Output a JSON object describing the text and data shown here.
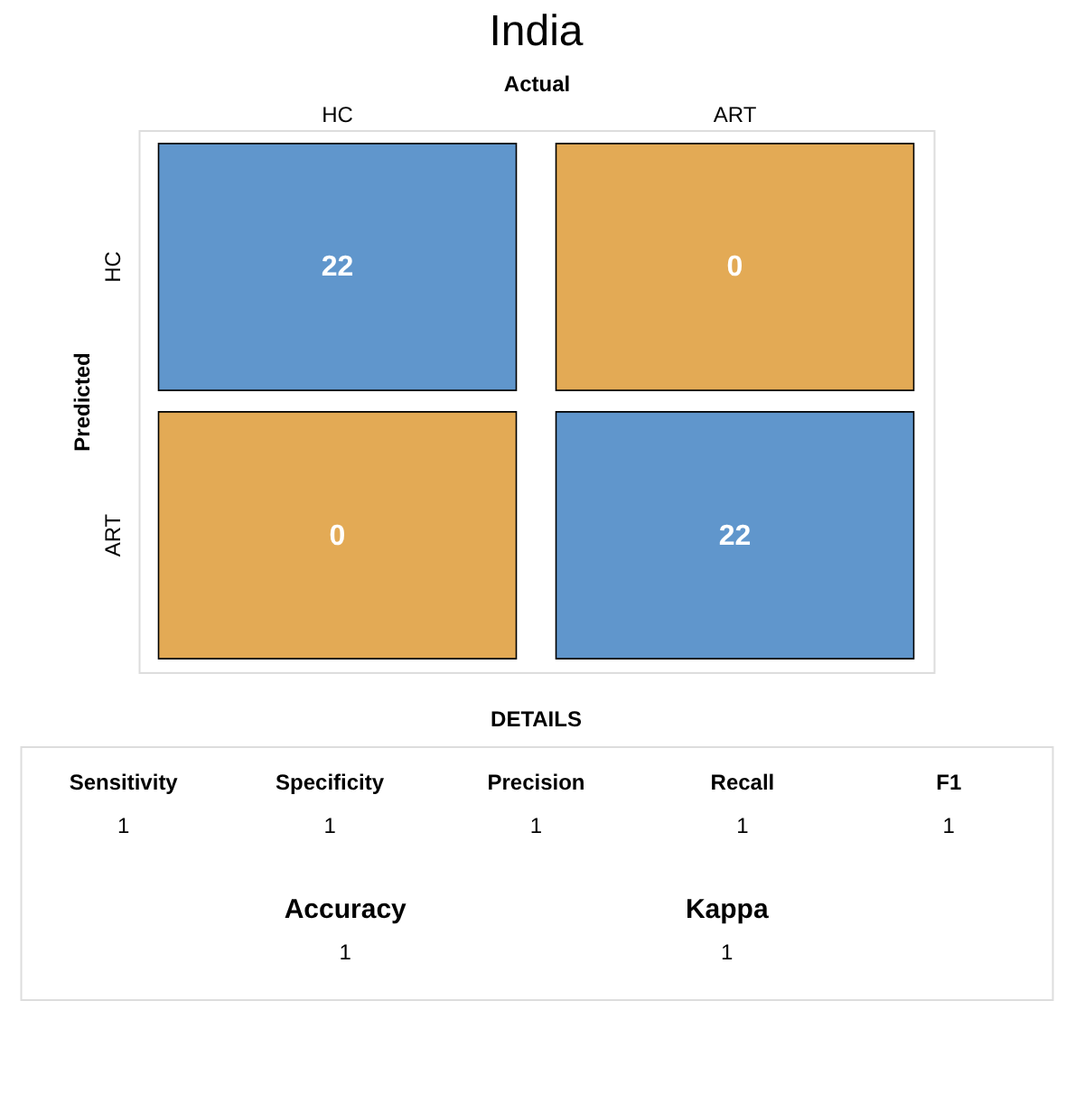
{
  "chart_data": [
    {
      "type": "heatmap",
      "title": "India",
      "xlabel": "Actual",
      "ylabel": "Predicted",
      "categories": [
        "HC",
        "ART"
      ],
      "y_categories": [
        "HC",
        "ART"
      ],
      "cells": [
        [
          22,
          0
        ],
        [
          0,
          22
        ]
      ],
      "colors": [
        [
          "#6096cc",
          "#e3aa55"
        ],
        [
          "#e3aa55",
          "#6096cc"
        ]
      ],
      "data_labels": true
    },
    {
      "type": "other",
      "title": "DETAILS",
      "categories": [
        "Sensitivity",
        "Specificity",
        "Precision",
        "Recall",
        "F1",
        "Accuracy",
        "Kappa"
      ],
      "values": [
        1,
        1,
        1,
        1,
        1,
        1,
        1
      ],
      "data_labels": true
    }
  ]
}
